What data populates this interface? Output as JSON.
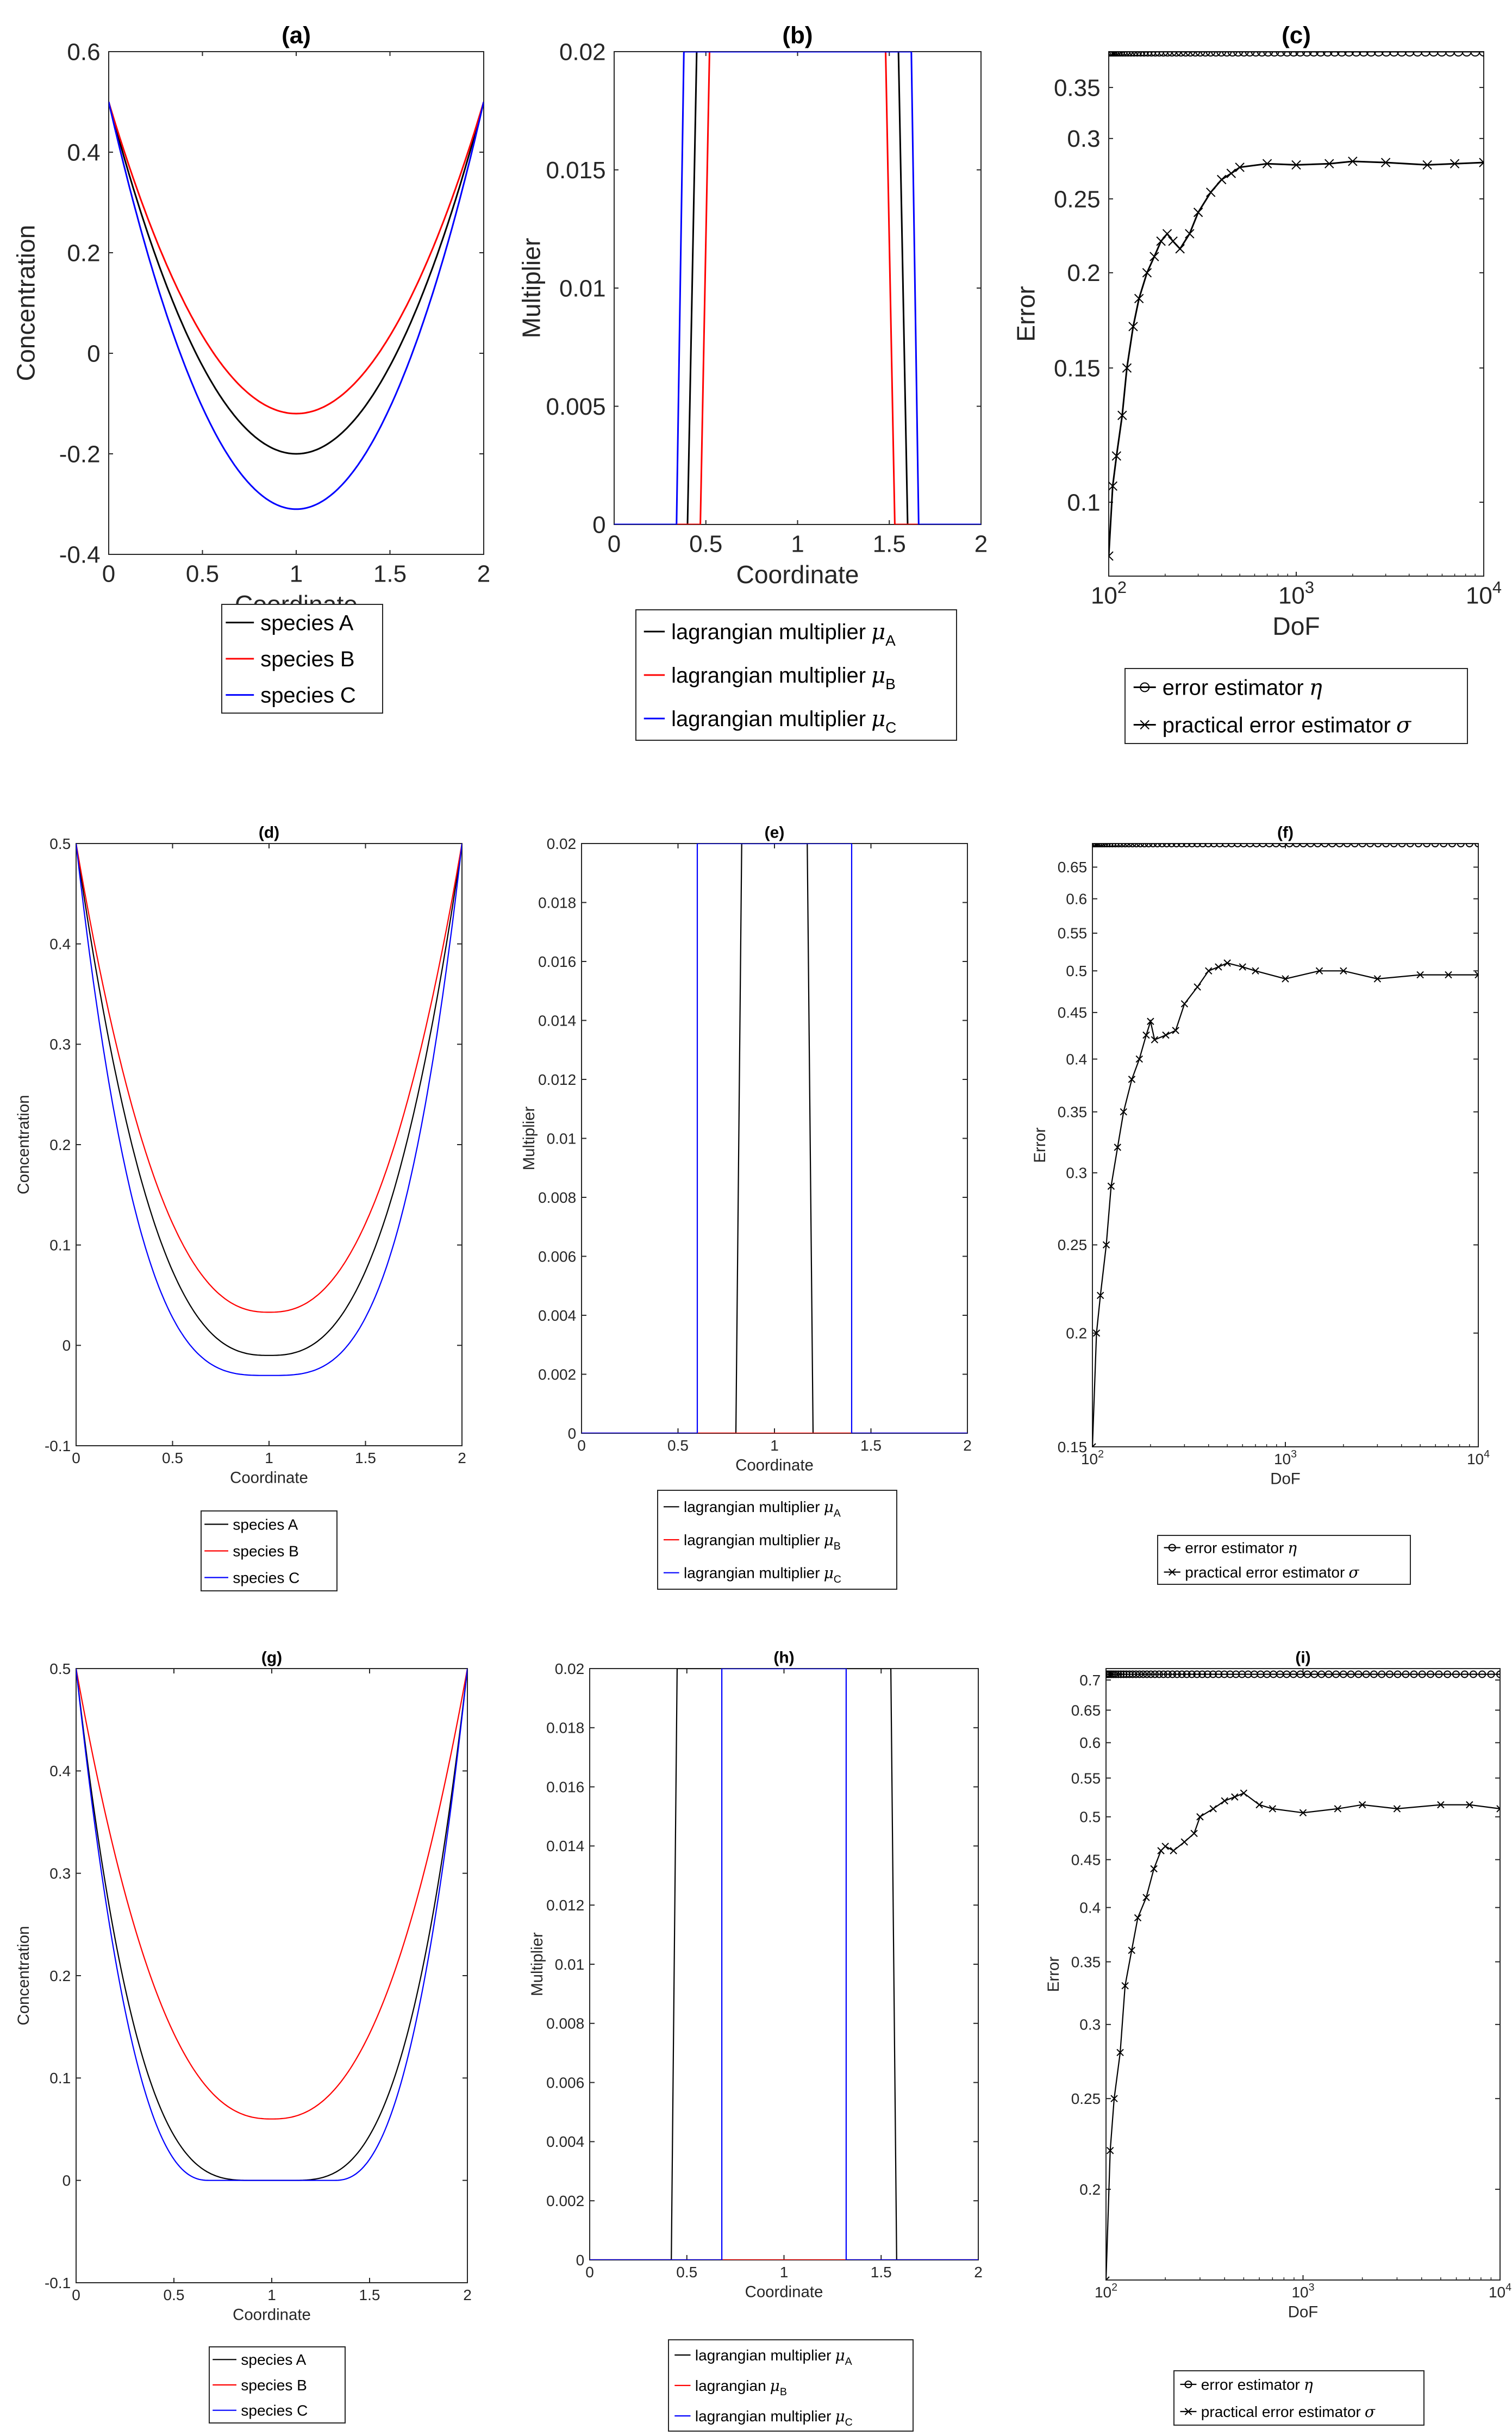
{
  "figure": {
    "panels": [
      {
        "id": "a",
        "label": "(a)"
      },
      {
        "id": "b",
        "label": "(b)"
      },
      {
        "id": "c",
        "label": "(c)"
      },
      {
        "id": "d",
        "label": "(d)"
      },
      {
        "id": "e",
        "label": "(e)"
      },
      {
        "id": "f",
        "label": "(f)"
      },
      {
        "id": "g",
        "label": "(g)"
      },
      {
        "id": "h",
        "label": "(h)"
      },
      {
        "id": "i",
        "label": "(i)"
      }
    ]
  },
  "colors": {
    "A": "#000000",
    "B": "#ff0000",
    "C": "#0000ff",
    "axis": "#262626"
  },
  "chart_data": [
    {
      "id": "a",
      "type": "line",
      "title": "(a)",
      "xlabel": "Coordinate",
      "ylabel": "Concentration",
      "xlim": [
        0,
        2
      ],
      "ylim": [
        -0.4,
        0.6
      ],
      "xticks": [
        0,
        0.5,
        1,
        1.5,
        2
      ],
      "xticklabels": [
        "0",
        "0.5",
        "1",
        "1.5",
        "2"
      ],
      "yticks": [
        -0.4,
        -0.2,
        0,
        0.2,
        0.4,
        0.6
      ],
      "yticklabels": [
        "-0.4",
        "-0.2",
        "0",
        "0.2",
        "0.4",
        "0.6"
      ],
      "legend": [
        {
          "label": "species A",
          "color": "#000000",
          "marker": "none"
        },
        {
          "label": "species B",
          "color": "#ff0000",
          "marker": "none"
        },
        {
          "label": "species C",
          "color": "#0000ff",
          "marker": "none"
        }
      ],
      "series": [
        {
          "name": "species A",
          "color": "#000000",
          "shape": "parabola",
          "min": -0.2,
          "edge": 0.5,
          "order": 2
        },
        {
          "name": "species B",
          "color": "#ff0000",
          "shape": "parabola",
          "min": -0.12,
          "edge": 0.5,
          "order": 2
        },
        {
          "name": "species C",
          "color": "#0000ff",
          "shape": "parabola",
          "min": -0.31,
          "edge": 0.5,
          "order": 2
        }
      ]
    },
    {
      "id": "b",
      "type": "line",
      "title": "(b)",
      "xlabel": "Coordinate",
      "ylabel": "Multiplier",
      "xlim": [
        0,
        2
      ],
      "ylim": [
        0,
        0.02
      ],
      "xticks": [
        0,
        0.5,
        1,
        1.5,
        2
      ],
      "xticklabels": [
        "0",
        "0.5",
        "1",
        "1.5",
        "2"
      ],
      "yticks": [
        0,
        0.005,
        0.01,
        0.015,
        0.02
      ],
      "yticklabels": [
        "0",
        "0.005",
        "0.01",
        "0.015",
        "0.02"
      ],
      "legend": [
        {
          "label": "lagrangian multiplier",
          "sym": "μ",
          "sub": "A",
          "color": "#000000",
          "marker": "none"
        },
        {
          "label": "lagrangian multiplier",
          "sym": "μ",
          "sub": "B",
          "color": "#ff0000",
          "marker": "none"
        },
        {
          "label": "lagrangian multiplier",
          "sym": "μ",
          "sub": "C",
          "color": "#0000ff",
          "marker": "none"
        }
      ],
      "series": [
        {
          "name": "mu_A",
          "color": "#000000",
          "shape": "plateaus",
          "x": [
            0,
            0.4,
            0.45,
            1.55,
            1.6,
            2
          ],
          "y": [
            0,
            0,
            0.02,
            0.02,
            0,
            0
          ]
        },
        {
          "name": "mu_B",
          "color": "#ff0000",
          "shape": "plateaus",
          "x": [
            0,
            0.47,
            0.52,
            1.48,
            1.53,
            2
          ],
          "y": [
            0,
            0,
            0.02,
            0.02,
            0,
            0
          ]
        },
        {
          "name": "mu_C",
          "color": "#0000ff",
          "shape": "plateaus",
          "x": [
            0,
            0.34,
            0.38,
            1.62,
            1.66,
            2
          ],
          "y": [
            0,
            0,
            0.02,
            0.02,
            0,
            0
          ]
        }
      ]
    },
    {
      "id": "c",
      "type": "line",
      "title": "(c)",
      "xlabel": "DoF",
      "ylabel": "Error",
      "xscale": "log",
      "yscale": "log",
      "xlim": [
        100,
        10000
      ],
      "ylim": [
        0.08,
        0.39
      ],
      "xticks": [
        100,
        1000,
        10000
      ],
      "xticklabels": [
        "10",
        "10",
        "10"
      ],
      "xtickexp": [
        "2",
        "3",
        "4"
      ],
      "yticks": [
        0.1,
        0.15,
        0.2,
        0.25,
        0.3,
        0.35
      ],
      "yticklabels": [
        "0.1",
        "0.15",
        "0.2",
        "0.25",
        "0.3",
        "0.35"
      ],
      "legend": [
        {
          "label": "error estimator",
          "sym": "η",
          "color": "#000000",
          "marker": "o"
        },
        {
          "label": "practical error estimator",
          "sym": "σ",
          "color": "#000000",
          "marker": "x"
        }
      ],
      "series": [
        {
          "name": "error estimator eta",
          "color": "#000000",
          "marker": "o",
          "shape": "flat",
          "value": 0.39
        },
        {
          "name": "practical error estimator sigma",
          "color": "#000000",
          "marker": "x",
          "shape": "convergence",
          "x": [
            100,
            105,
            110,
            118,
            125,
            135,
            145,
            160,
            175,
            190,
            205,
            220,
            240,
            270,
            300,
            350,
            400,
            450,
            500,
            700,
            1000,
            1500,
            2000,
            3000,
            5000,
            7000,
            10000
          ],
          "y": [
            0.085,
            0.105,
            0.115,
            0.13,
            0.15,
            0.17,
            0.185,
            0.2,
            0.21,
            0.22,
            0.225,
            0.22,
            0.215,
            0.225,
            0.24,
            0.255,
            0.265,
            0.27,
            0.275,
            0.278,
            0.277,
            0.278,
            0.28,
            0.279,
            0.277,
            0.278,
            0.279
          ]
        }
      ]
    },
    {
      "id": "d",
      "type": "line",
      "title": "(d)",
      "xlabel": "Coordinate",
      "ylabel": "Concentration",
      "xlim": [
        0,
        2
      ],
      "ylim": [
        -0.1,
        0.5
      ],
      "xticks": [
        0,
        0.5,
        1,
        1.5,
        2
      ],
      "xticklabels": [
        "0",
        "0.5",
        "1",
        "1.5",
        "2"
      ],
      "yticks": [
        -0.1,
        0,
        0.1,
        0.2,
        0.3,
        0.4,
        0.5
      ],
      "yticklabels": [
        "-0.1",
        "0",
        "0.1",
        "0.2",
        "0.3",
        "0.4",
        "0.5"
      ],
      "legend": [
        {
          "label": "species A",
          "color": "#000000",
          "marker": "none"
        },
        {
          "label": "species B",
          "color": "#ff0000",
          "marker": "none"
        },
        {
          "label": "species C",
          "color": "#0000ff",
          "marker": "none"
        }
      ],
      "series": [
        {
          "name": "species A",
          "color": "#000000",
          "shape": "parabola",
          "min": -0.01,
          "edge": 0.5,
          "order": 2.6
        },
        {
          "name": "species B",
          "color": "#ff0000",
          "shape": "parabola",
          "min": 0.033,
          "edge": 0.5,
          "order": 2.4
        },
        {
          "name": "species C",
          "color": "#0000ff",
          "shape": "parabola",
          "min": -0.03,
          "edge": 0.5,
          "order": 3.2
        }
      ]
    },
    {
      "id": "e",
      "type": "line",
      "title": "(e)",
      "xlabel": "Coordinate",
      "ylabel": "Multiplier",
      "xlim": [
        0,
        2
      ],
      "ylim": [
        0,
        0.02
      ],
      "xticks": [
        0,
        0.5,
        1,
        1.5,
        2
      ],
      "xticklabels": [
        "0",
        "0.5",
        "1",
        "1.5",
        "2"
      ],
      "yticks": [
        0,
        0.002,
        0.004,
        0.006,
        0.008,
        0.01,
        0.012,
        0.014,
        0.016,
        0.018,
        0.02
      ],
      "yticklabels": [
        "0",
        "0.002",
        "0.004",
        "0.006",
        "0.008",
        "0.01",
        "0.012",
        "0.014",
        "0.016",
        "0.018",
        "0.02"
      ],
      "legend": [
        {
          "label": "lagrangian multiplier",
          "sym": "μ",
          "sub": "A",
          "color": "#000000",
          "marker": "none"
        },
        {
          "label": "lagrangian multiplier",
          "sym": "μ",
          "sub": "B",
          "color": "#ff0000",
          "marker": "none"
        },
        {
          "label": "lagrangian multiplier",
          "sym": "μ",
          "sub": "C",
          "color": "#0000ff",
          "marker": "none"
        }
      ],
      "series": [
        {
          "name": "mu_A",
          "color": "#000000",
          "shape": "plateaus",
          "x": [
            0,
            0.8,
            0.83,
            1.17,
            1.2,
            2
          ],
          "y": [
            0,
            0,
            0.02,
            0.02,
            0,
            0
          ]
        },
        {
          "name": "mu_B",
          "color": "#ff0000",
          "shape": "plateaus",
          "x": [
            0,
            2
          ],
          "y": [
            0,
            0
          ]
        },
        {
          "name": "mu_C",
          "color": "#0000ff",
          "shape": "plateaus",
          "x": [
            0,
            0.6,
            0.6,
            1.4,
            1.4,
            2
          ],
          "y": [
            0,
            0,
            0.02,
            0.02,
            0,
            0
          ]
        }
      ]
    },
    {
      "id": "f",
      "type": "line",
      "title": "(f)",
      "xlabel": "DoF",
      "ylabel": "Error",
      "xscale": "log",
      "yscale": "log",
      "xlim": [
        100,
        10000
      ],
      "ylim": [
        0.15,
        0.69
      ],
      "xticks": [
        100,
        1000,
        10000
      ],
      "xticklabels": [
        "10",
        "10",
        "10"
      ],
      "xtickexp": [
        "2",
        "3",
        "4"
      ],
      "yticks": [
        0.15,
        0.2,
        0.25,
        0.3,
        0.35,
        0.4,
        0.45,
        0.5,
        0.55,
        0.6,
        0.65
      ],
      "yticklabels": [
        "0.15",
        "0.2",
        "0.25",
        "0.3",
        "0.35",
        "0.4",
        "0.45",
        "0.5",
        "0.55",
        "0.6",
        "0.65"
      ],
      "legend": [
        {
          "label": "error estimator",
          "sym": "η",
          "color": "#000000",
          "marker": "o"
        },
        {
          "label": "practical error estimator",
          "sym": "σ",
          "color": "#000000",
          "marker": "x"
        }
      ],
      "series": [
        {
          "name": "error estimator eta",
          "color": "#000000",
          "marker": "o",
          "shape": "flat",
          "value": 0.69
        },
        {
          "name": "practical error estimator sigma",
          "color": "#000000",
          "marker": "x",
          "shape": "convergence",
          "x": [
            100,
            105,
            110,
            118,
            125,
            135,
            145,
            160,
            175,
            190,
            200,
            210,
            240,
            270,
            300,
            350,
            400,
            450,
            500,
            600,
            700,
            1000,
            1500,
            2000,
            3000,
            5000,
            7000,
            10000
          ],
          "y": [
            0.15,
            0.2,
            0.22,
            0.25,
            0.29,
            0.32,
            0.35,
            0.38,
            0.4,
            0.425,
            0.44,
            0.42,
            0.425,
            0.43,
            0.46,
            0.48,
            0.5,
            0.505,
            0.51,
            0.505,
            0.5,
            0.49,
            0.5,
            0.5,
            0.49,
            0.495,
            0.495,
            0.495
          ]
        }
      ]
    },
    {
      "id": "g",
      "type": "line",
      "title": "(g)",
      "xlabel": "Coordinate",
      "ylabel": "Concentration",
      "xlim": [
        0,
        2
      ],
      "ylim": [
        -0.1,
        0.5
      ],
      "xticks": [
        0,
        0.5,
        1,
        1.5,
        2
      ],
      "xticklabels": [
        "0",
        "0.5",
        "1",
        "1.5",
        "2"
      ],
      "yticks": [
        -0.1,
        0,
        0.1,
        0.2,
        0.3,
        0.4,
        0.5
      ],
      "yticklabels": [
        "-0.1",
        "0",
        "0.1",
        "0.2",
        "0.3",
        "0.4",
        "0.5"
      ],
      "legend": [
        {
          "label": "species A",
          "color": "#000000",
          "marker": "none"
        },
        {
          "label": "species B",
          "color": "#ff0000",
          "marker": "none"
        },
        {
          "label": "species C",
          "color": "#0000ff",
          "marker": "none"
        }
      ],
      "series": [
        {
          "name": "species A",
          "color": "#000000",
          "shape": "parabola",
          "min": 0.0,
          "edge": 0.5,
          "order": 3.0,
          "flat": 0.1
        },
        {
          "name": "species B",
          "color": "#ff0000",
          "shape": "parabola",
          "min": 0.06,
          "edge": 0.5,
          "order": 2.4
        },
        {
          "name": "species C",
          "color": "#0000ff",
          "shape": "parabola",
          "min": 0.0,
          "edge": 0.5,
          "order": 2.4,
          "flat": 0.32
        }
      ]
    },
    {
      "id": "h",
      "type": "line",
      "title": "(h)",
      "xlabel": "Coordinate",
      "ylabel": "Multiplier",
      "xlim": [
        0,
        2
      ],
      "ylim": [
        0,
        0.02
      ],
      "xticks": [
        0,
        0.5,
        1,
        1.5,
        2
      ],
      "xticklabels": [
        "0",
        "0.5",
        "1",
        "1.5",
        "2"
      ],
      "yticks": [
        0,
        0.002,
        0.004,
        0.006,
        0.008,
        0.01,
        0.012,
        0.014,
        0.016,
        0.018,
        0.02
      ],
      "yticklabels": [
        "0",
        "0.002",
        "0.004",
        "0.006",
        "0.008",
        "0.01",
        "0.012",
        "0.014",
        "0.016",
        "0.018",
        "0.02"
      ],
      "legend": [
        {
          "label": "lagrangian multiplier",
          "sym": "μ",
          "sub": "A",
          "color": "#000000",
          "marker": "none"
        },
        {
          "label": "lagrangian",
          "sym": "μ",
          "sub": "B",
          "color": "#ff0000",
          "marker": "none"
        },
        {
          "label": "lagrangian multiplier",
          "sym": "μ",
          "sub": "C",
          "color": "#0000ff",
          "marker": "none"
        }
      ],
      "series": [
        {
          "name": "mu_A",
          "color": "#000000",
          "shape": "plateaus",
          "x": [
            0,
            0.42,
            0.45,
            1.55,
            1.58,
            2
          ],
          "y": [
            0,
            0,
            0.02,
            0.02,
            0,
            0
          ]
        },
        {
          "name": "mu_B",
          "color": "#ff0000",
          "shape": "plateaus",
          "x": [
            0,
            2
          ],
          "y": [
            0,
            0
          ]
        },
        {
          "name": "mu_C",
          "color": "#0000ff",
          "shape": "plateaus",
          "x": [
            0,
            0.68,
            0.68,
            1.32,
            1.32,
            2
          ],
          "y": [
            0,
            0,
            0.02,
            0.02,
            0,
            0
          ]
        }
      ]
    },
    {
      "id": "i",
      "type": "line",
      "title": "(i)",
      "xlabel": "DoF",
      "ylabel": "Error",
      "xscale": "log",
      "yscale": "log",
      "xlim": [
        100,
        10000
      ],
      "ylim": [
        0.16,
        0.72
      ],
      "xticks": [
        100,
        1000,
        10000
      ],
      "xticklabels": [
        "10",
        "10",
        "10"
      ],
      "xtickexp": [
        "2",
        "3",
        "4"
      ],
      "yticks": [
        0.2,
        0.25,
        0.3,
        0.35,
        0.4,
        0.45,
        0.5,
        0.55,
        0.6,
        0.65,
        0.7
      ],
      "yticklabels": [
        "0.2",
        "0.25",
        "0.3",
        "0.35",
        "0.4",
        "0.45",
        "0.5",
        "0.55",
        "0.6",
        "0.65",
        "0.7"
      ],
      "legend": [
        {
          "label": "error estimator",
          "sym": "η",
          "color": "#000000",
          "marker": "o"
        },
        {
          "label": "practical error estimator",
          "sym": "σ",
          "color": "#000000",
          "marker": "x"
        }
      ],
      "series": [
        {
          "name": "error estimator eta",
          "color": "#000000",
          "marker": "o",
          "shape": "flat",
          "value": 0.71
        },
        {
          "name": "practical error estimator sigma",
          "color": "#000000",
          "marker": "x",
          "shape": "convergence",
          "x": [
            100,
            105,
            110,
            118,
            125,
            135,
            145,
            160,
            175,
            190,
            200,
            220,
            250,
            280,
            300,
            350,
            400,
            450,
            500,
            600,
            700,
            1000,
            1500,
            2000,
            3000,
            5000,
            7000,
            10000
          ],
          "y": [
            0.16,
            0.22,
            0.25,
            0.28,
            0.33,
            0.36,
            0.39,
            0.41,
            0.44,
            0.46,
            0.465,
            0.46,
            0.47,
            0.48,
            0.5,
            0.51,
            0.52,
            0.525,
            0.53,
            0.515,
            0.51,
            0.505,
            0.51,
            0.515,
            0.51,
            0.515,
            0.515,
            0.51
          ]
        }
      ]
    }
  ]
}
